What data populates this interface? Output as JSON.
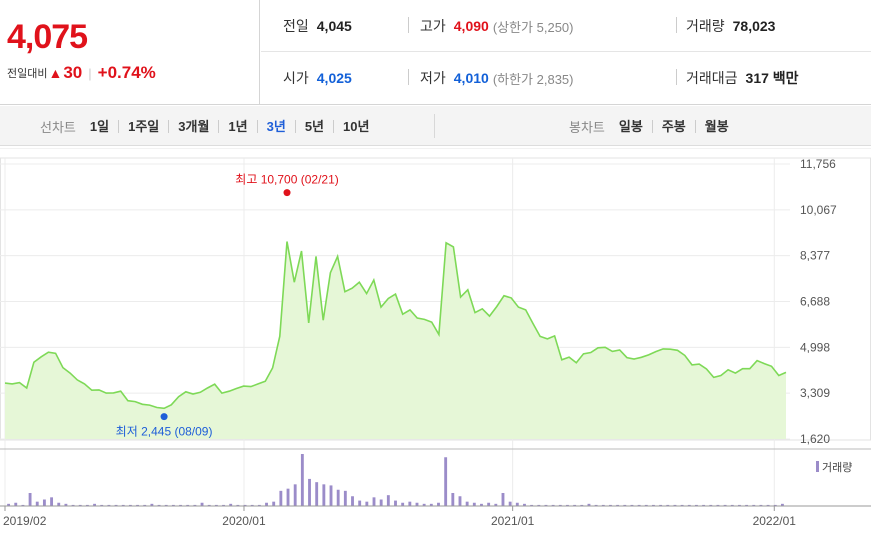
{
  "price": {
    "current": "4,075",
    "change_label": "전일대비",
    "change_arrow": "▲",
    "change_value": "30",
    "change_pct": "+0.74%"
  },
  "stats": {
    "prev_close": {
      "label": "전일",
      "value": "4,045"
    },
    "high": {
      "label": "고가",
      "value": "4,090",
      "sub": "(상한가 5,250)"
    },
    "volume": {
      "label": "거래량",
      "value": "78,023"
    },
    "open": {
      "label": "시가",
      "value": "4,025"
    },
    "low": {
      "label": "저가",
      "value": "4,010",
      "sub": "(하한가 2,835)"
    },
    "trade_amount": {
      "label": "거래대금",
      "value": "317 백만"
    }
  },
  "toolbar": {
    "line_chart_label": "선차트",
    "periods": [
      "1일",
      "1주일",
      "3개월",
      "1년",
      "3년",
      "5년",
      "10년"
    ],
    "active_period": "3년",
    "candle_chart_label": "봉차트",
    "candle_periods": [
      "일봉",
      "주봉",
      "월봉"
    ]
  },
  "colors": {
    "up": "#e0121b",
    "down": "#1260d8",
    "accent": "#1e5ed8",
    "line": "#7ed957",
    "area": "#e6f7d7",
    "volume": "#9b8cc9"
  },
  "chart_data": {
    "type": "area",
    "y_axis_ticks": [
      "11,756",
      "10,067",
      "8,377",
      "6,688",
      "4,998",
      "3,309",
      "1,620"
    ],
    "x_axis_ticks": [
      "2019/02",
      "2020/01",
      "2021/01",
      "2022/01"
    ],
    "ylim": [
      1620,
      11756
    ],
    "grid": true,
    "high_label": "최고 10,700 (02/21)",
    "low_label": "최저 2,445 (08/09)",
    "high_value": 10700,
    "low_value": 2445,
    "volume_legend": "거래량",
    "price_series": [
      3680,
      3650,
      3700,
      3500,
      4450,
      4650,
      4820,
      4780,
      4250,
      4050,
      3800,
      3650,
      3420,
      3430,
      3310,
      3320,
      3380,
      3030,
      3000,
      2900,
      2870,
      2780,
      2750,
      2880,
      3180,
      3360,
      3280,
      3340,
      3500,
      3640,
      3310,
      3380,
      3480,
      3570,
      3550,
      3650,
      3750,
      4240,
      5410,
      8900,
      7400,
      8550,
      5900,
      8350,
      6000,
      7750,
      8350,
      7050,
      7180,
      7400,
      6980,
      7480,
      6480,
      6800,
      6960,
      6220,
      6380,
      6080,
      6030,
      5930,
      5470,
      8850,
      8700,
      6850,
      7120,
      6280,
      6420,
      6150,
      6500,
      6900,
      6820,
      6480,
      6380,
      5880,
      5400,
      5310,
      5420,
      4540,
      4640,
      4430,
      4760,
      4810,
      4980,
      5000,
      4850,
      4900,
      4620,
      4570,
      4630,
      4720,
      4840,
      4940,
      4930,
      4890,
      4700,
      4350,
      4380,
      4200,
      3890,
      3960,
      4170,
      4050,
      4210,
      4210,
      4510,
      4400,
      4300,
      3960,
      4075
    ],
    "volume_series": [
      2,
      3,
      1,
      12,
      4,
      6,
      8,
      3,
      2,
      1,
      1,
      1,
      2,
      1,
      1,
      1,
      1,
      1,
      1,
      1,
      2,
      1,
      1,
      1,
      1,
      1,
      1,
      3,
      1,
      1,
      1,
      2,
      1,
      1,
      1,
      1,
      3,
      4,
      14,
      16,
      20,
      48,
      25,
      22,
      20,
      19,
      15,
      14,
      9,
      5,
      4,
      8,
      6,
      10,
      5,
      3,
      4,
      3,
      2,
      2,
      3,
      45,
      12,
      9,
      4,
      3,
      2,
      3,
      2,
      12,
      4,
      3,
      2,
      1,
      1,
      1,
      1,
      1,
      1,
      1,
      1,
      2,
      1,
      1,
      1,
      1,
      1,
      1,
      1,
      1,
      1,
      1,
      1,
      1,
      1,
      1,
      1,
      1,
      1,
      1,
      1,
      1,
      1,
      1,
      1,
      1,
      1,
      1,
      2
    ]
  }
}
